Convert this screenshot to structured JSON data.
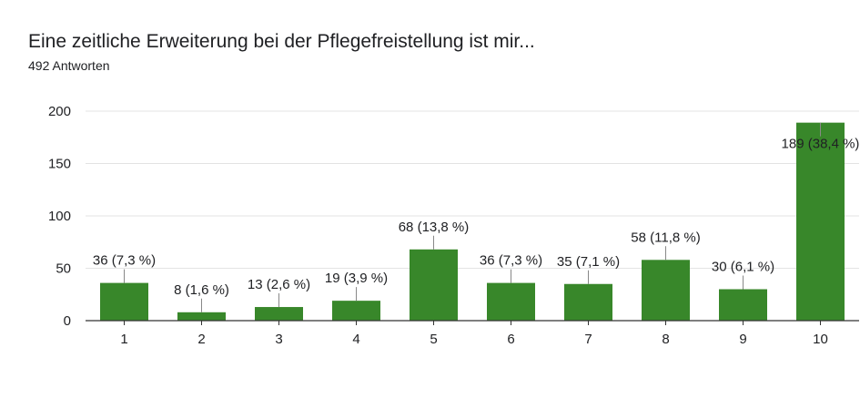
{
  "header": {
    "title": "Eine zeitliche Erweiterung bei der Pflegefreistellung ist mir...",
    "response_count": "492 Antworten"
  },
  "colors": {
    "bar": "#38872a",
    "grid": "#e3e3e3",
    "axis": "#333333",
    "text": "#202124"
  },
  "chart_data": {
    "type": "bar",
    "title": "Eine zeitliche Erweiterung bei der Pflegefreistellung ist mir...",
    "subtitle": "492 Antworten",
    "xlabel": "",
    "ylabel": "",
    "categories": [
      "1",
      "2",
      "3",
      "4",
      "5",
      "6",
      "7",
      "8",
      "9",
      "10"
    ],
    "values": [
      36,
      8,
      13,
      19,
      68,
      36,
      35,
      58,
      30,
      189
    ],
    "data_labels": [
      "36 (7,3 %)",
      "8 (1,6 %)",
      "13 (2,6 %)",
      "19 (3,9 %)",
      "68 (13,8 %)",
      "36 (7,3 %)",
      "35 (7,1 %)",
      "58 (11,8 %)",
      "30 (6,1 %)",
      "189 (38,4 %)"
    ],
    "ylim": [
      0,
      200
    ],
    "yticks": [
      0,
      50,
      100,
      150,
      200
    ],
    "grid": true,
    "legend": "none"
  }
}
